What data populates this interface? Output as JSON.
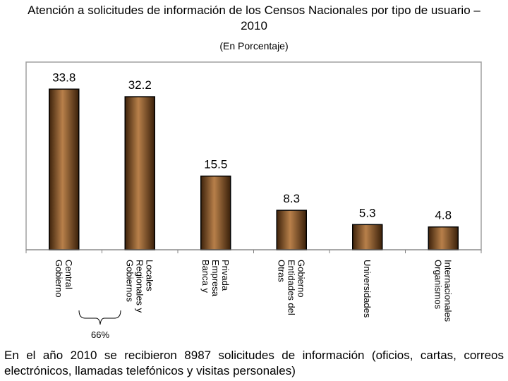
{
  "title_line1": "Atención a solicitudes de información de los Censos Nacionales por tipo de usuario –",
  "title_line2": "2010",
  "footer_text": "En el año 2010 se recibieron 8987 solicitudes de información (oficios, cartas, correos electrónicos,  llamadas telefónicos y visitas personales)",
  "chart_data": {
    "type": "bar",
    "title": "",
    "subtitle": "(En Porcentaje)",
    "xlabel": "",
    "ylabel": "",
    "ylim": [
      0,
      38
    ],
    "grid": false,
    "categories": [
      [
        "Gobierno",
        "Central"
      ],
      [
        "Gobiernos",
        "Regionales y",
        "Locales"
      ],
      [
        "Banca y",
        "Empresa",
        "Privada"
      ],
      [
        "Otras",
        "Entidades del",
        "Gobierno"
      ],
      [
        "Universidades"
      ],
      [
        "Organismos",
        "Internacionales"
      ]
    ],
    "values": [
      33.8,
      32.2,
      15.5,
      8.3,
      5.3,
      4.8
    ],
    "value_labels": [
      "33.8",
      "32.2",
      "15.5",
      "8.3",
      "5.3",
      "4.8"
    ],
    "bracket_label": "66%",
    "bar_color": "#8a5424"
  }
}
